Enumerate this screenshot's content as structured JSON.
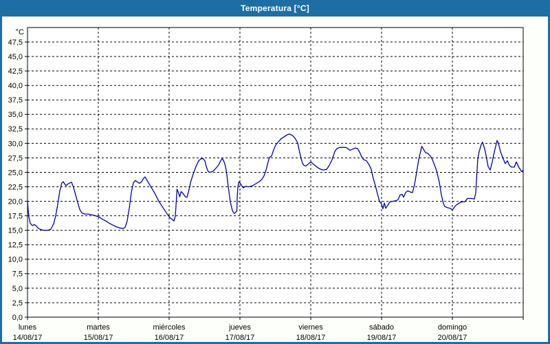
{
  "window": {
    "title": "Temperatura [°C]"
  },
  "colors": {
    "frame": "#1C6EA4",
    "title_text": "#FFFFFF",
    "background": "#FDFFFA",
    "plot_background": "#FEFFFE",
    "line": "#0000A8",
    "grid": "#000000",
    "text": "#000000"
  },
  "chart_data": {
    "type": "line",
    "title": "Temperatura [°C]",
    "grid": "dashed",
    "legend": "none",
    "y_axis": {
      "unit_label": "°C",
      "min": 0,
      "max": 50,
      "tick_step": 2.5,
      "decimal_separator": ",",
      "tick_labels": [
        "0,0",
        "2,5",
        "5,0",
        "7,5",
        "10,0",
        "12,5",
        "15,0",
        "17,5",
        "20,0",
        "22,5",
        "25,0",
        "27,5",
        "30,0",
        "32,5",
        "35,0",
        "37,5",
        "40,0",
        "42,5",
        "45,0",
        "47,5"
      ]
    },
    "x_axis": {
      "days": [
        {
          "name": "lunes",
          "date": "14/08/17"
        },
        {
          "name": "martes",
          "date": "15/08/17"
        },
        {
          "name": "miércoles",
          "date": "16/08/17"
        },
        {
          "name": "jueves",
          "date": "17/08/17"
        },
        {
          "name": "viernes",
          "date": "18/08/17"
        },
        {
          "name": "sábado",
          "date": "19/08/17"
        },
        {
          "name": "domingo",
          "date": "20/08/17"
        }
      ]
    },
    "series": [
      {
        "name": "Temperatura",
        "color": "#0000A8",
        "points_day_temp": [
          [
            0.0,
            20.0
          ],
          [
            0.01,
            18.5
          ],
          [
            0.019,
            17.3
          ],
          [
            0.039,
            16.2
          ],
          [
            0.068,
            15.8
          ],
          [
            0.097,
            16.0
          ],
          [
            0.126,
            15.7
          ],
          [
            0.155,
            15.3
          ],
          [
            0.194,
            15.1
          ],
          [
            0.233,
            15.0
          ],
          [
            0.291,
            15.0
          ],
          [
            0.33,
            15.2
          ],
          [
            0.369,
            16.1
          ],
          [
            0.398,
            17.5
          ],
          [
            0.427,
            19.5
          ],
          [
            0.456,
            21.8
          ],
          [
            0.485,
            23.2
          ],
          [
            0.505,
            23.4
          ],
          [
            0.524,
            23.0
          ],
          [
            0.544,
            22.7
          ],
          [
            0.573,
            23.0
          ],
          [
            0.602,
            23.2
          ],
          [
            0.621,
            23.3
          ],
          [
            0.65,
            22.4
          ],
          [
            0.68,
            21.1
          ],
          [
            0.709,
            19.8
          ],
          [
            0.738,
            18.6
          ],
          [
            0.767,
            18.0
          ],
          [
            0.806,
            17.8
          ],
          [
            0.854,
            17.8
          ],
          [
            0.903,
            17.7
          ],
          [
            0.961,
            17.5
          ],
          [
            1.01,
            17.3
          ],
          [
            1.058,
            16.9
          ],
          [
            1.107,
            16.6
          ],
          [
            1.155,
            16.2
          ],
          [
            1.204,
            15.9
          ],
          [
            1.252,
            15.6
          ],
          [
            1.301,
            15.4
          ],
          [
            1.35,
            15.3
          ],
          [
            1.379,
            15.5
          ],
          [
            1.408,
            16.6
          ],
          [
            1.437,
            18.8
          ],
          [
            1.466,
            21.5
          ],
          [
            1.495,
            23.2
          ],
          [
            1.524,
            23.6
          ],
          [
            1.553,
            23.3
          ],
          [
            1.583,
            23.1
          ],
          [
            1.612,
            23.4
          ],
          [
            1.641,
            24.0
          ],
          [
            1.66,
            24.2
          ],
          [
            1.689,
            23.6
          ],
          [
            1.718,
            23.0
          ],
          [
            1.757,
            22.2
          ],
          [
            1.806,
            21.2
          ],
          [
            1.854,
            20.0
          ],
          [
            1.903,
            19.1
          ],
          [
            1.951,
            18.2
          ],
          [
            1.99,
            17.5
          ],
          [
            2.019,
            17.1
          ],
          [
            2.049,
            16.8
          ],
          [
            2.068,
            16.6
          ],
          [
            2.087,
            17.4
          ],
          [
            2.1,
            19.8
          ],
          [
            2.112,
            22.1
          ],
          [
            2.131,
            21.5
          ],
          [
            2.15,
            20.8
          ],
          [
            2.17,
            21.7
          ],
          [
            2.199,
            21.3
          ],
          [
            2.228,
            20.8
          ],
          [
            2.252,
            20.7
          ],
          [
            2.277,
            21.8
          ],
          [
            2.306,
            23.4
          ],
          [
            2.34,
            24.7
          ],
          [
            2.379,
            26.0
          ],
          [
            2.417,
            27.0
          ],
          [
            2.447,
            27.3
          ],
          [
            2.476,
            27.4
          ],
          [
            2.505,
            27.0
          ],
          [
            2.524,
            26.0
          ],
          [
            2.553,
            25.1
          ],
          [
            2.583,
            25.0
          ],
          [
            2.621,
            25.2
          ],
          [
            2.66,
            25.7
          ],
          [
            2.699,
            26.3
          ],
          [
            2.728,
            27.0
          ],
          [
            2.752,
            27.4
          ],
          [
            2.777,
            26.8
          ],
          [
            2.796,
            26.0
          ],
          [
            2.816,
            24.6
          ],
          [
            2.835,
            22.5
          ],
          [
            2.864,
            19.9
          ],
          [
            2.893,
            18.4
          ],
          [
            2.917,
            17.9
          ],
          [
            2.941,
            18.1
          ],
          [
            2.956,
            18.3
          ],
          [
            2.961,
            20.5
          ],
          [
            2.971,
            22.5
          ],
          [
            2.985,
            23.4
          ],
          [
            3.0,
            23.2
          ],
          [
            3.019,
            22.8
          ],
          [
            3.049,
            22.3
          ],
          [
            3.078,
            22.6
          ],
          [
            3.117,
            22.5
          ],
          [
            3.155,
            22.6
          ],
          [
            3.194,
            22.8
          ],
          [
            3.233,
            23.1
          ],
          [
            3.272,
            23.4
          ],
          [
            3.311,
            23.8
          ],
          [
            3.34,
            24.4
          ],
          [
            3.369,
            25.4
          ],
          [
            3.398,
            26.8
          ],
          [
            3.417,
            27.6
          ],
          [
            3.447,
            27.8
          ],
          [
            3.476,
            28.9
          ],
          [
            3.505,
            29.7
          ],
          [
            3.544,
            30.3
          ],
          [
            3.583,
            30.8
          ],
          [
            3.631,
            31.2
          ],
          [
            3.67,
            31.5
          ],
          [
            3.699,
            31.6
          ],
          [
            3.738,
            31.4
          ],
          [
            3.777,
            30.9
          ],
          [
            3.816,
            30.1
          ],
          [
            3.835,
            28.9
          ],
          [
            3.864,
            27.4
          ],
          [
            3.883,
            26.6
          ],
          [
            3.903,
            26.2
          ],
          [
            3.932,
            26.1
          ],
          [
            3.961,
            26.4
          ],
          [
            3.981,
            26.6
          ],
          [
            4.0,
            26.8
          ],
          [
            4.029,
            26.5
          ],
          [
            4.078,
            26.0
          ],
          [
            4.126,
            25.6
          ],
          [
            4.175,
            25.4
          ],
          [
            4.223,
            25.5
          ],
          [
            4.262,
            26.2
          ],
          [
            4.301,
            27.2
          ],
          [
            4.34,
            28.6
          ],
          [
            4.369,
            29.1
          ],
          [
            4.408,
            29.3
          ],
          [
            4.456,
            29.3
          ],
          [
            4.495,
            29.3
          ],
          [
            4.524,
            29.1
          ],
          [
            4.553,
            28.8
          ],
          [
            4.592,
            29.0
          ],
          [
            4.631,
            29.2
          ],
          [
            4.66,
            29.1
          ],
          [
            4.689,
            28.5
          ],
          [
            4.718,
            27.7
          ],
          [
            4.748,
            27.2
          ],
          [
            4.786,
            27.0
          ],
          [
            4.825,
            26.3
          ],
          [
            4.854,
            25.5
          ],
          [
            4.883,
            24.0
          ],
          [
            4.913,
            22.7
          ],
          [
            4.942,
            21.3
          ],
          [
            4.971,
            20.0
          ],
          [
            5.0,
            19.5
          ],
          [
            5.019,
            18.7
          ],
          [
            5.039,
            19.7
          ],
          [
            5.058,
            18.8
          ],
          [
            5.087,
            19.3
          ],
          [
            5.117,
            19.9
          ],
          [
            5.155,
            20.0
          ],
          [
            5.204,
            20.1
          ],
          [
            5.233,
            20.3
          ],
          [
            5.262,
            21.1
          ],
          [
            5.291,
            21.2
          ],
          [
            5.311,
            20.7
          ],
          [
            5.34,
            21.5
          ],
          [
            5.369,
            21.8
          ],
          [
            5.408,
            21.6
          ],
          [
            5.437,
            21.5
          ],
          [
            5.466,
            22.9
          ],
          [
            5.495,
            25.0
          ],
          [
            5.524,
            27.2
          ],
          [
            5.568,
            29.5
          ],
          [
            5.592,
            29.0
          ],
          [
            5.621,
            28.4
          ],
          [
            5.65,
            28.3
          ],
          [
            5.689,
            27.8
          ],
          [
            5.718,
            27.2
          ],
          [
            5.777,
            25.3
          ],
          [
            5.816,
            23.3
          ],
          [
            5.845,
            21.1
          ],
          [
            5.874,
            19.6
          ],
          [
            5.893,
            19.1
          ],
          [
            5.932,
            18.9
          ],
          [
            5.971,
            18.8
          ],
          [
            6.0,
            18.5
          ],
          [
            6.029,
            19.0
          ],
          [
            6.058,
            19.4
          ],
          [
            6.097,
            19.7
          ],
          [
            6.136,
            19.9
          ],
          [
            6.175,
            19.9
          ],
          [
            6.214,
            20.5
          ],
          [
            6.262,
            20.5
          ],
          [
            6.311,
            20.4
          ],
          [
            6.33,
            21.5
          ],
          [
            6.345,
            24.5
          ],
          [
            6.359,
            27.4
          ],
          [
            6.379,
            28.6
          ],
          [
            6.408,
            29.8
          ],
          [
            6.427,
            30.2
          ],
          [
            6.456,
            29.0
          ],
          [
            6.475,
            28.0
          ],
          [
            6.505,
            26.0
          ],
          [
            6.534,
            25.4
          ],
          [
            6.563,
            26.8
          ],
          [
            6.583,
            28.0
          ],
          [
            6.612,
            29.5
          ],
          [
            6.631,
            30.5
          ],
          [
            6.65,
            30.0
          ],
          [
            6.68,
            28.6
          ],
          [
            6.709,
            27.6
          ],
          [
            6.748,
            26.5
          ],
          [
            6.777,
            27.0
          ],
          [
            6.806,
            26.2
          ],
          [
            6.835,
            25.9
          ],
          [
            6.874,
            25.9
          ],
          [
            6.903,
            26.8
          ],
          [
            6.942,
            25.8
          ],
          [
            6.981,
            25.1
          ],
          [
            7.0,
            25.4
          ]
        ]
      }
    ]
  }
}
